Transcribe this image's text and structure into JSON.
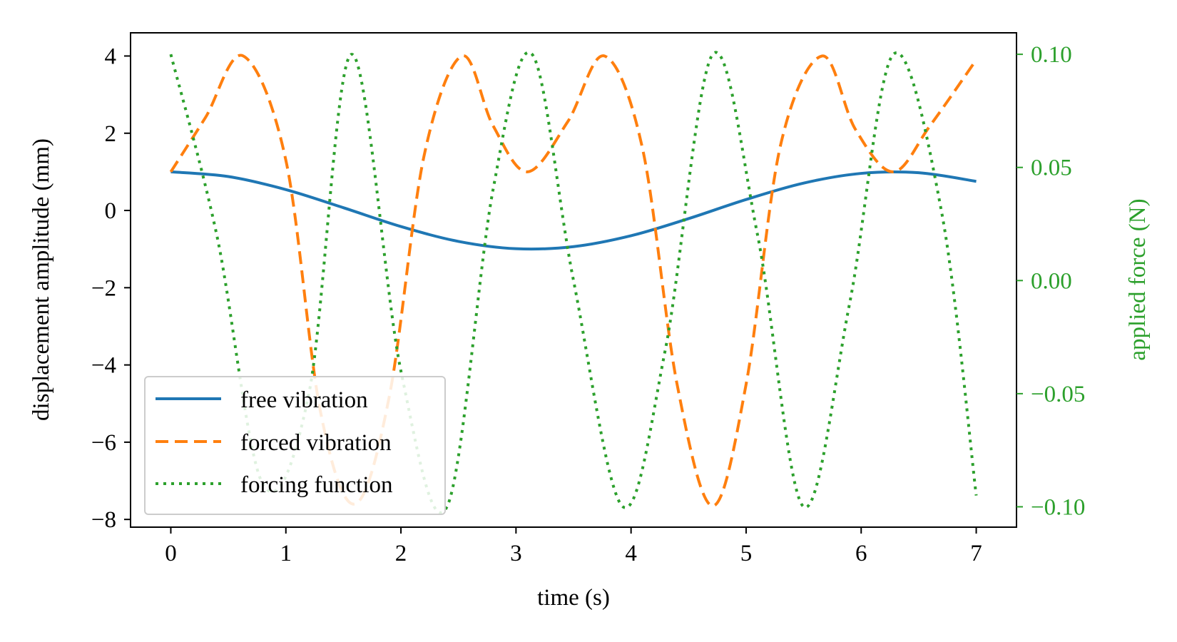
{
  "chart_data": {
    "type": "line",
    "title": "",
    "xlabel": "time (s)",
    "ylabel": "displacement amplitude (mm)",
    "y2label": "applied force (N)",
    "xlim": [
      -0.35,
      7.35
    ],
    "ylim": [
      -8.2,
      4.6
    ],
    "y2lim": [
      -0.109,
      0.1095
    ],
    "xticks": [
      0,
      1,
      2,
      3,
      4,
      5,
      6,
      7
    ],
    "xtick_labels": [
      "0",
      "1",
      "2",
      "3",
      "4",
      "5",
      "6",
      "7"
    ],
    "yticks": [
      4,
      2,
      0,
      -2,
      -4,
      -6,
      -8
    ],
    "ytick_labels": [
      "4",
      "2",
      "0",
      "−2",
      "−4",
      "−6",
      "−8"
    ],
    "y2ticks": [
      0.1,
      0.05,
      0.0,
      -0.05,
      -0.1
    ],
    "y2tick_labels": [
      "0.10",
      "0.05",
      "0.00",
      "−0.05",
      "−0.10"
    ],
    "legend_position": "lower-left",
    "colors": {
      "free": "#1f77b4",
      "forced": "#ff7f0e",
      "forcing": "#2ca02c"
    },
    "series": [
      {
        "name": "free vibration",
        "axis": "left",
        "style": "solid",
        "x": [
          0,
          0.5,
          1,
          1.5,
          2,
          2.5,
          3,
          3.5,
          4,
          4.5,
          5,
          5.5,
          6,
          6.5,
          7
        ],
        "values": [
          1,
          0.878,
          0.54,
          0.071,
          -0.416,
          -0.801,
          -0.99,
          -0.936,
          -0.654,
          -0.211,
          0.284,
          0.709,
          0.96,
          0.977,
          0.754
        ]
      },
      {
        "name": "forced vibration",
        "axis": "left",
        "style": "dashed",
        "x": [
          0,
          0.3,
          0.63,
          1.0,
          1.3,
          1.6,
          1.9,
          2.2,
          2.53,
          2.8,
          3.1,
          3.45,
          3.77,
          4.1,
          4.4,
          4.71,
          5.0,
          5.3,
          5.66,
          5.95,
          6.28,
          6.6,
          7.0
        ],
        "values": [
          1,
          2.4,
          4.0,
          1.3,
          -5.2,
          -7.6,
          -4.8,
          1.4,
          4.0,
          2.2,
          1.0,
          2.3,
          4.0,
          1.6,
          -4.5,
          -7.65,
          -4.5,
          1.7,
          4.0,
          2.1,
          1.0,
          2.2,
          3.9
        ]
      },
      {
        "name": "forcing function",
        "axis": "right",
        "style": "dotted",
        "x": [
          0,
          0.4,
          0.8,
          1.2,
          1.57,
          2.0,
          2.4,
          2.8,
          3.14,
          3.5,
          3.93,
          4.3,
          4.71,
          5.1,
          5.5,
          5.9,
          6.28,
          6.7,
          7.0
        ],
        "values": [
          0.1,
          0.02,
          -0.09,
          -0.05,
          0.1,
          -0.04,
          -0.1,
          0.04,
          0.1,
          0.0,
          -0.1,
          -0.03,
          0.1,
          0.02,
          -0.1,
          -0.01,
          0.1,
          0.03,
          -0.095
        ]
      }
    ]
  }
}
